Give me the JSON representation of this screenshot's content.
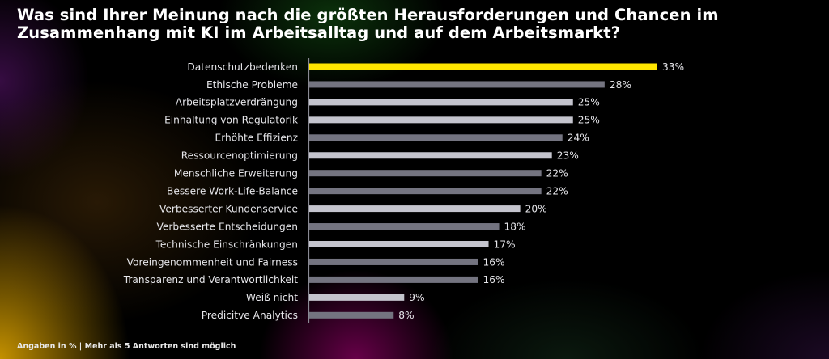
{
  "title": "Was sind Ihrer Meinung nach die größten Herausforderungen und Chancen im Zusammenhang mit KI im Arbeitsalltag und auf dem Arbeitsmarkt?",
  "footnote": "Angaben in % | Mehr als 5 Antworten sind möglich",
  "colors": {
    "highlight": "#ffe600",
    "dark_bar": "#747480",
    "light_bar": "#c4c4cd",
    "background": "#000000"
  },
  "chart_data": {
    "type": "bar",
    "orientation": "horizontal",
    "title": "Was sind Ihrer Meinung nach die größten Herausforderungen und Chancen im Zusammenhang mit KI im Arbeitsalltag und auf dem Arbeitsmarkt?",
    "categories": [
      "Datenschutzbedenken",
      "Ethische Probleme",
      "Arbeitsplatzverdrängung",
      "Einhaltung von Regulatorik",
      "Erhöhte Effizienz",
      "Ressourcenoptimierung",
      "Menschliche Erweiterung",
      "Bessere Work-Life-Balance",
      "Verbesserter Kundenservice",
      "Verbesserte Entscheidungen",
      "Technische Einschränkungen",
      "Voreingenommenheit und Fairness",
      "Transparenz und Verantwortlichkeit",
      "Weiß nicht",
      "Predicitve Analytics"
    ],
    "values": [
      33,
      28,
      25,
      25,
      24,
      23,
      22,
      22,
      20,
      18,
      17,
      16,
      16,
      9,
      8
    ],
    "value_labels": [
      "33%",
      "28%",
      "25%",
      "25%",
      "24%",
      "23%",
      "22%",
      "22%",
      "20%",
      "18%",
      "17%",
      "16%",
      "16%",
      "9%",
      "8%"
    ],
    "bar_colors": [
      "highlight",
      "dark",
      "light",
      "light",
      "dark",
      "light",
      "dark",
      "dark",
      "light",
      "dark",
      "light",
      "dark",
      "dark",
      "light",
      "dark"
    ],
    "unit": "%",
    "xlim": [
      0,
      33
    ],
    "grid": false,
    "legend": "none"
  }
}
